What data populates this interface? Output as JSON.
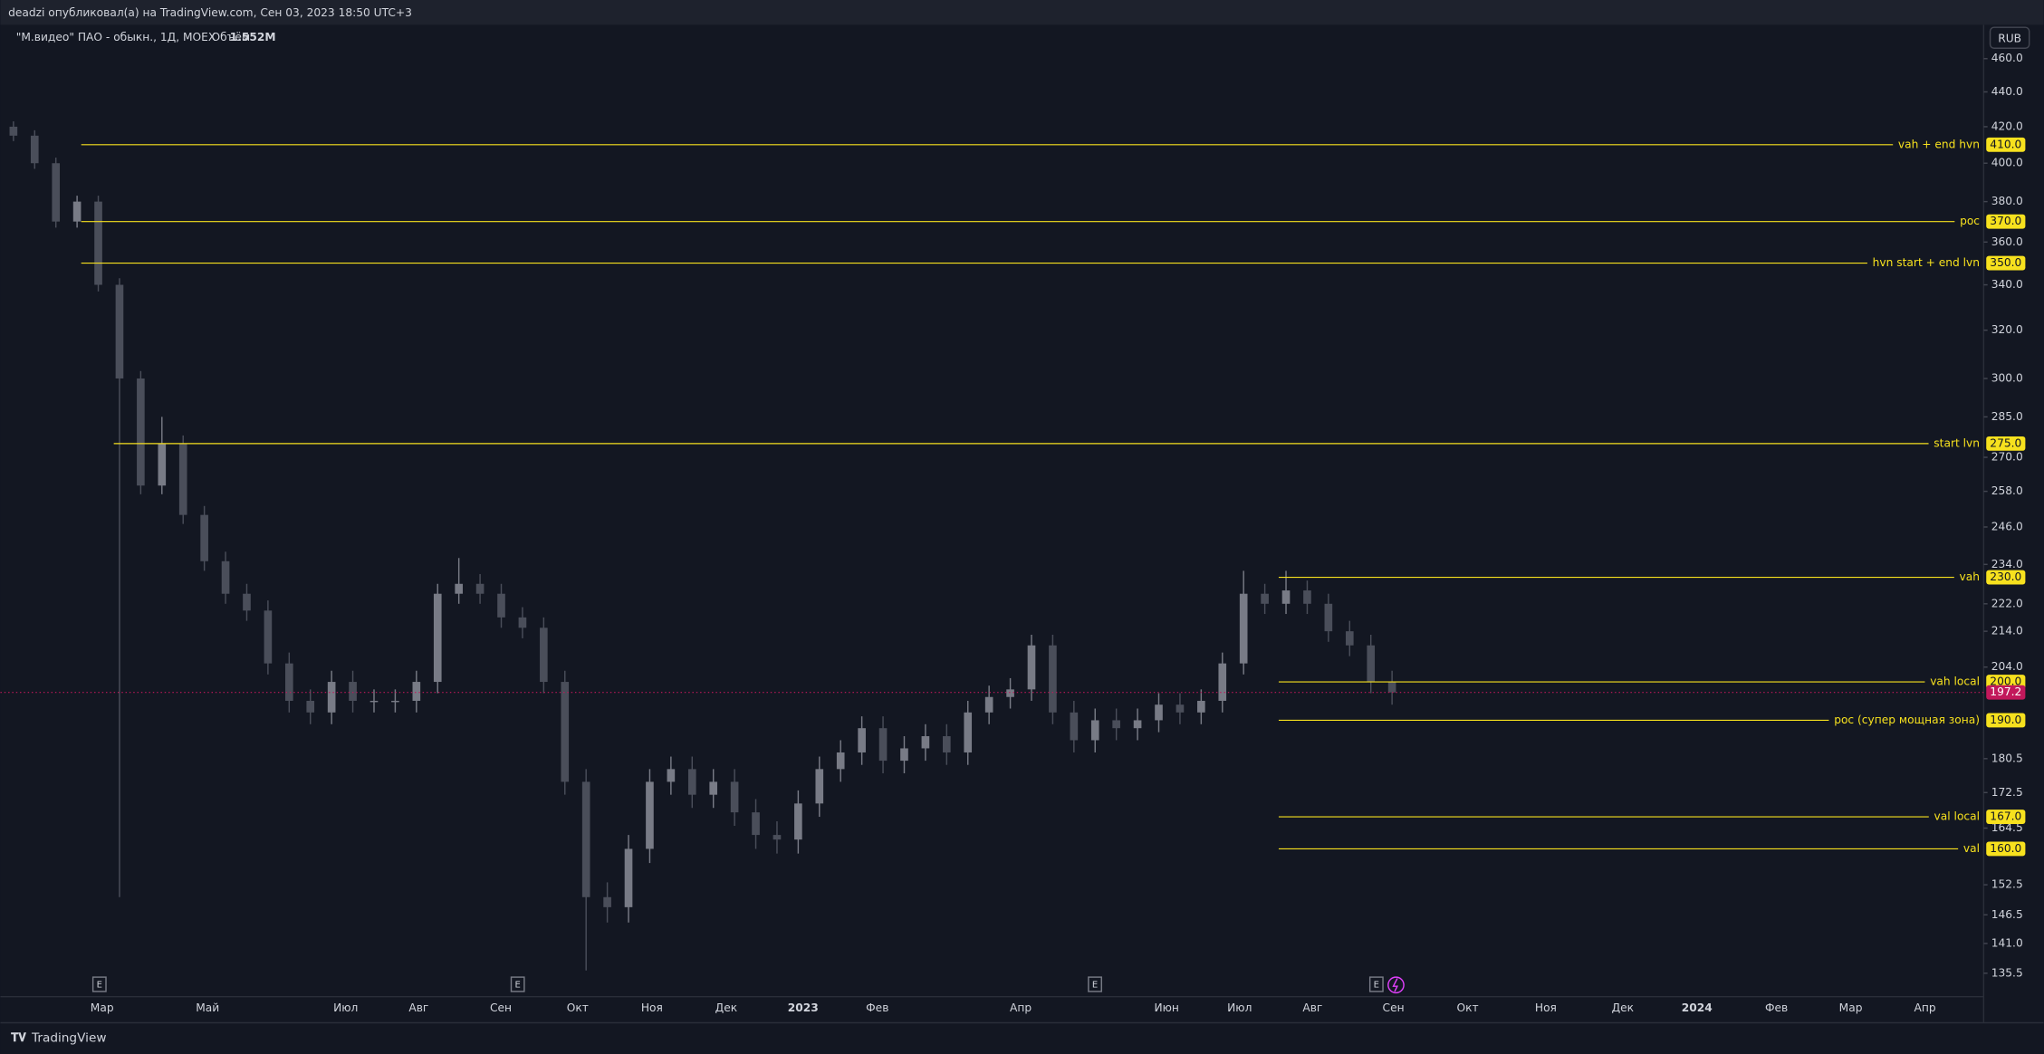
{
  "header": {
    "publisher_line": "deadzi опубликовал(а) на TradingView.com, Сен 03, 2023 18:50 UTC+3"
  },
  "legend": {
    "symbol": "\"М.видео\" ПАО - обыкн., 1Д, MOEX",
    "volume_label": "Объём",
    "volume": "1.552M"
  },
  "currency": "RUB",
  "events": [
    "E",
    "E",
    "E",
    "E"
  ],
  "footer": {
    "brand": "TradingView"
  },
  "chart_data": {
    "type": "candlestick",
    "log_scale": true,
    "grid": false,
    "up_color": "#787b86",
    "down_color": "#4a4e5a",
    "level_color": "#f7e11e",
    "last_color": "#c2185b",
    "ylim": [
      132,
      480
    ],
    "yticks": [
      {
        "value": 460,
        "label": "460.0"
      },
      {
        "value": 440,
        "label": "440.0"
      },
      {
        "value": 420,
        "label": "420.0"
      },
      {
        "value": 400,
        "label": "400.0"
      },
      {
        "value": 380,
        "label": "380.0"
      },
      {
        "value": 360,
        "label": "360.0"
      },
      {
        "value": 340,
        "label": "340.0"
      },
      {
        "value": 320,
        "label": "320.0"
      },
      {
        "value": 300,
        "label": "300.0"
      },
      {
        "value": 285,
        "label": "285.0"
      },
      {
        "value": 270,
        "label": "270.0"
      },
      {
        "value": 258,
        "label": "258.0"
      },
      {
        "value": 246,
        "label": "246.0"
      },
      {
        "value": 234,
        "label": "234.0"
      },
      {
        "value": 222,
        "label": "222.0"
      },
      {
        "value": 214,
        "label": "214.0"
      },
      {
        "value": 204,
        "label": "204.0"
      },
      {
        "value": 180.5,
        "label": "180.5"
      },
      {
        "value": 172.5,
        "label": "172.5"
      },
      {
        "value": 164.5,
        "label": "164.5"
      },
      {
        "value": 152.5,
        "label": "152.5"
      },
      {
        "value": 146.5,
        "label": "146.5"
      },
      {
        "value": 141,
        "label": "141.0"
      },
      {
        "value": 135.5,
        "label": "135.5"
      }
    ],
    "time_labels": [
      "Мар",
      "Май",
      "Июл",
      "Авг",
      "Сен",
      "Окт",
      "Ноя",
      "Дек",
      "2023",
      "Фев",
      "Апр",
      "Июн",
      "Июл",
      "Авг",
      "Сен",
      "Окт",
      "Ноя",
      "Дек",
      "2024",
      "Фев",
      "Мар",
      "Апр"
    ],
    "open": [
      420,
      415,
      400,
      370,
      380,
      340,
      300,
      260,
      275,
      250,
      235,
      225,
      220,
      205,
      195,
      192,
      200,
      195,
      195,
      195,
      200,
      225,
      228,
      225,
      218,
      215,
      200,
      175,
      150,
      148,
      160,
      175,
      178,
      172,
      175,
      168,
      163,
      162,
      170,
      178,
      182,
      188,
      180,
      183,
      186,
      182,
      192,
      196,
      198,
      210,
      192,
      185,
      190,
      188,
      190,
      194,
      192,
      195,
      205,
      225,
      222,
      226,
      222,
      214,
      210,
      200
    ],
    "high": [
      423,
      418,
      403,
      383,
      383,
      343,
      303,
      285,
      278,
      253,
      238,
      228,
      223,
      208,
      198,
      203,
      203,
      198,
      198,
      203,
      228,
      236,
      231,
      228,
      221,
      218,
      203,
      178,
      153,
      163,
      178,
      181,
      181,
      178,
      178,
      171,
      166,
      173,
      181,
      185,
      191,
      191,
      186,
      189,
      189,
      195,
      199,
      201,
      213,
      213,
      195,
      193,
      193,
      193,
      197,
      197,
      198,
      208,
      232,
      228,
      232,
      229,
      225,
      217,
      213,
      203
    ],
    "low": [
      412,
      397,
      367,
      367,
      337,
      150,
      257,
      257,
      247,
      232,
      222,
      217,
      202,
      192,
      189,
      189,
      192,
      192,
      192,
      192,
      197,
      222,
      222,
      215,
      212,
      197,
      172,
      136,
      145,
      145,
      157,
      172,
      169,
      169,
      165,
      160,
      159,
      159,
      167,
      175,
      179,
      177,
      177,
      180,
      179,
      179,
      189,
      193,
      195,
      189,
      182,
      182,
      185,
      185,
      187,
      189,
      189,
      192,
      202,
      219,
      219,
      219,
      211,
      207,
      197,
      194
    ],
    "close": [
      415,
      400,
      370,
      380,
      340,
      300,
      260,
      275,
      250,
      235,
      225,
      220,
      205,
      195,
      192,
      200,
      195,
      195,
      195,
      200,
      225,
      228,
      225,
      218,
      215,
      200,
      175,
      150,
      148,
      160,
      175,
      178,
      172,
      175,
      168,
      163,
      162,
      170,
      178,
      182,
      188,
      180,
      183,
      186,
      182,
      192,
      196,
      198,
      210,
      192,
      185,
      190,
      188,
      190,
      194,
      192,
      195,
      205,
      225,
      222,
      226,
      222,
      214,
      210,
      200,
      197.2
    ],
    "levels": [
      {
        "name": "vah + end hvn",
        "value": 410,
        "value_label": "410.0"
      },
      {
        "name": "poc",
        "value": 370,
        "value_label": "370.0"
      },
      {
        "name": "hvn start + end lvn",
        "value": 350,
        "value_label": "350.0"
      },
      {
        "name": "start lvn",
        "value": 275,
        "value_label": "275.0"
      },
      {
        "name": "vah",
        "value": 230,
        "value_label": "230.0"
      },
      {
        "name": "vah local",
        "value": 200,
        "value_label": "200.0"
      },
      {
        "name": "poc (супер мощная зона)",
        "value": 190,
        "value_label": "190.0"
      },
      {
        "name": "val local",
        "value": 167,
        "value_label": "167.0"
      },
      {
        "name": "val",
        "value": 160,
        "value_label": "160.0"
      }
    ]
  }
}
